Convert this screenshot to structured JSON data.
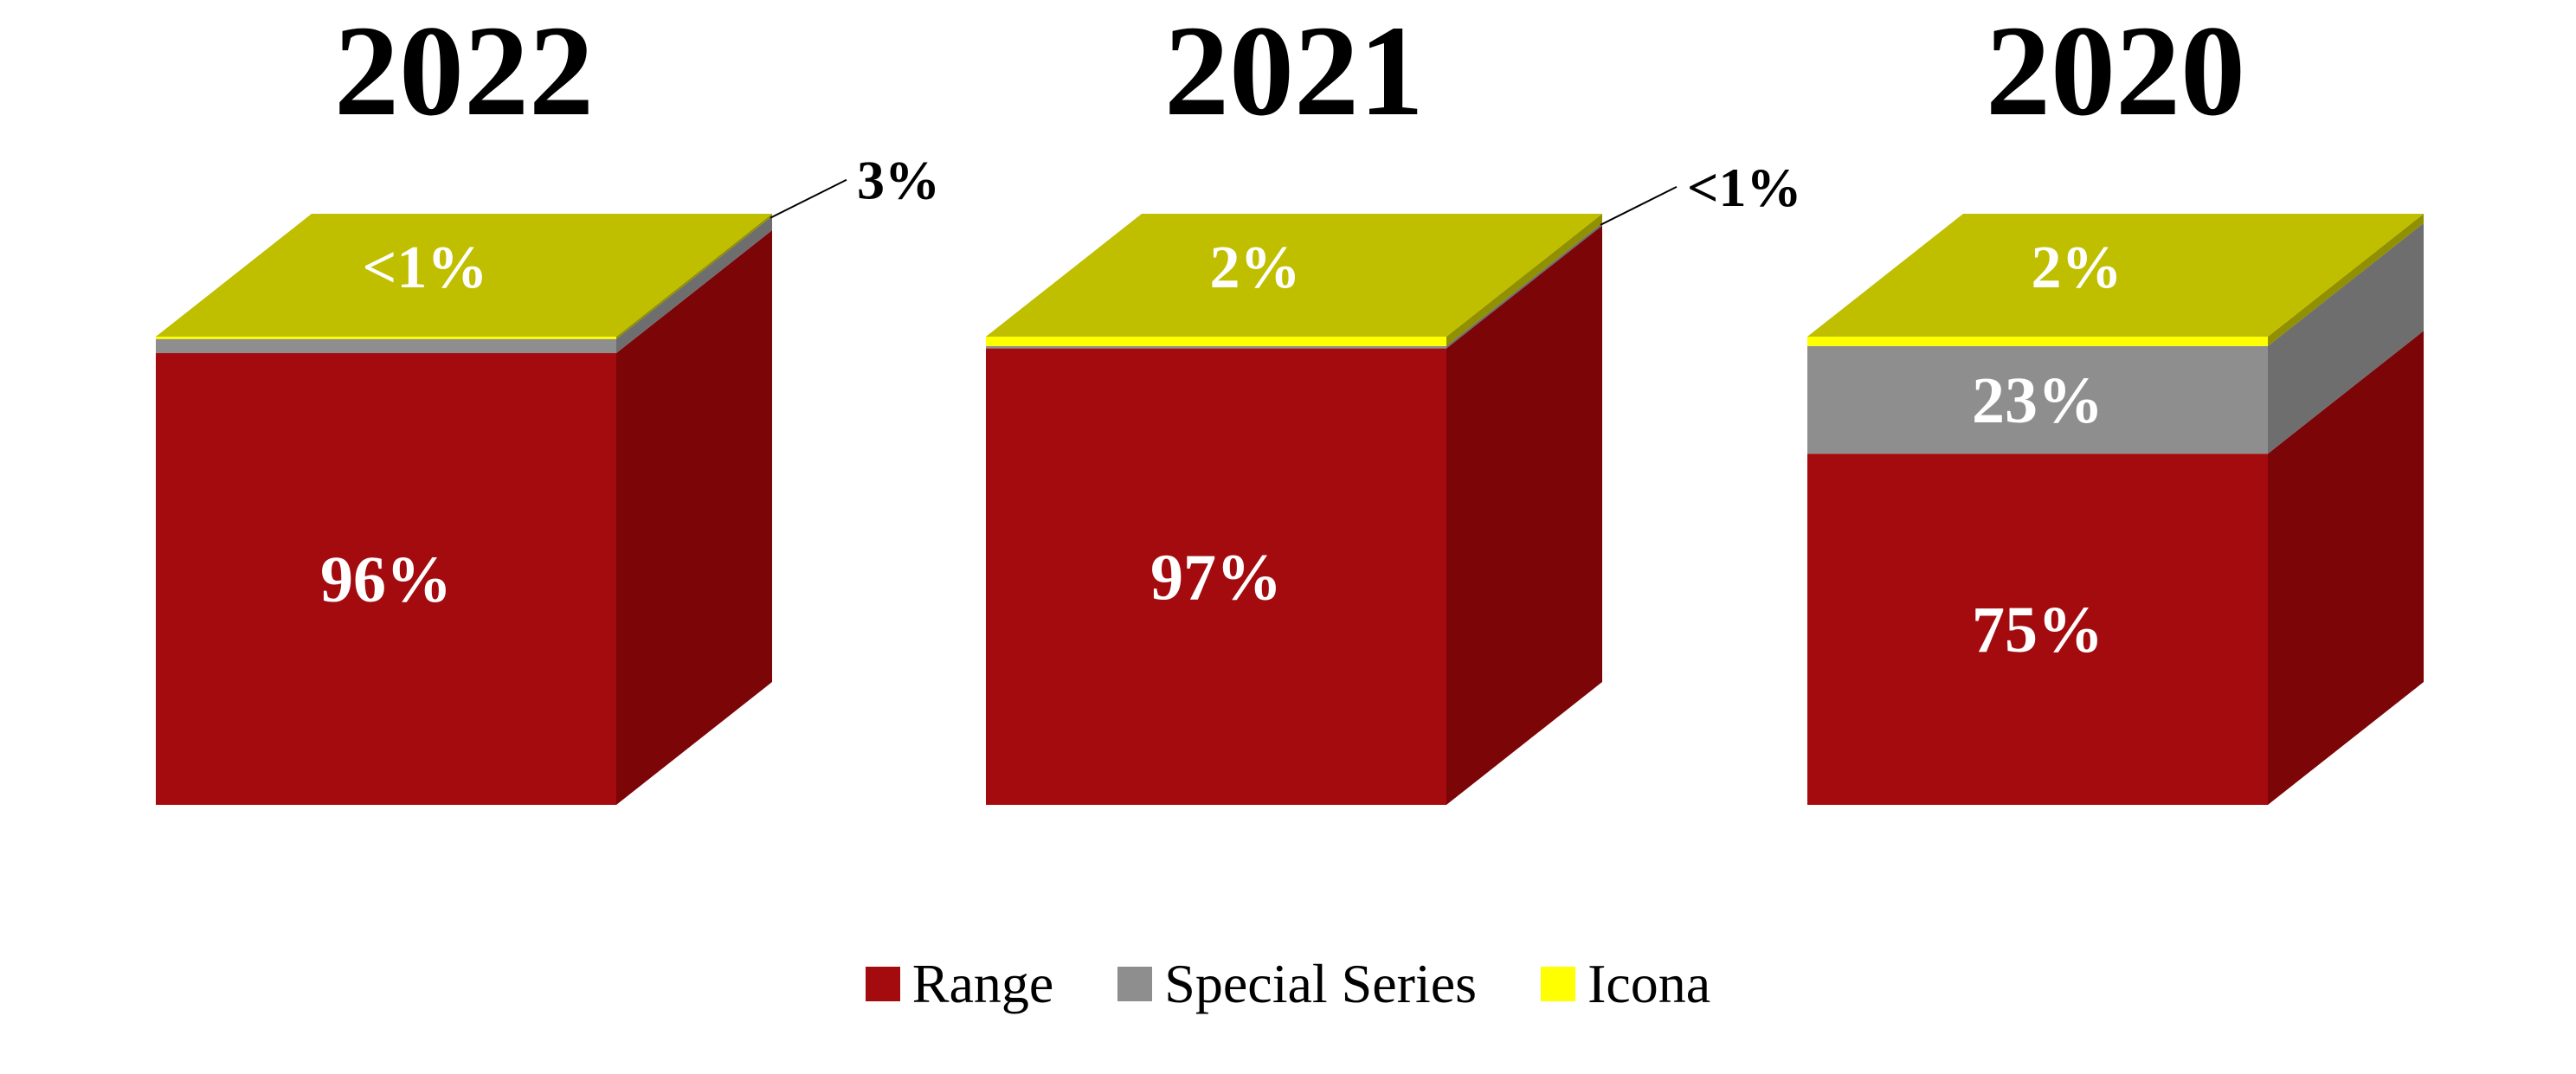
{
  "chart_data": {
    "type": "bar",
    "variant": "3d-stacked-cube",
    "unit": "%",
    "order": "segments listed bottom-to-top",
    "background": "#FFFFFF",
    "years": [
      {
        "title": "2022",
        "segments": [
          {
            "series": "Range",
            "label": "96%",
            "value": 96,
            "label_position": "front"
          },
          {
            "series": "Special Series",
            "label": "3%",
            "value": 3,
            "label_position": "callout"
          },
          {
            "series": "Icona",
            "label": "<1%",
            "value": 0.5,
            "label_position": "top"
          }
        ]
      },
      {
        "title": "2021",
        "segments": [
          {
            "series": "Range",
            "label": "97%",
            "value": 97,
            "label_position": "front"
          },
          {
            "series": "Special Series",
            "label": "<1%",
            "value": 0.5,
            "label_position": "callout"
          },
          {
            "series": "Icona",
            "label": "2%",
            "value": 2,
            "label_position": "top"
          }
        ]
      },
      {
        "title": "2020",
        "segments": [
          {
            "series": "Range",
            "label": "75%",
            "value": 75,
            "label_position": "front"
          },
          {
            "series": "Special Series",
            "label": "23%",
            "value": 23,
            "label_position": "front"
          },
          {
            "series": "Icona",
            "label": "2%",
            "value": 2,
            "label_position": "top"
          }
        ]
      }
    ],
    "legend": [
      {
        "label": "Range",
        "color": "#A40B0E"
      },
      {
        "label": "Special Series",
        "color": "#8E8E8E"
      },
      {
        "label": "Icona",
        "color": "#FFFF00"
      }
    ],
    "colors": {
      "Range": {
        "front": "#A40B0E",
        "side": "#7C0507",
        "top": "#C23336"
      },
      "Special Series": {
        "front": "#8E8E8E",
        "side": "#6E6E6E",
        "top": "#A8A8A8"
      },
      "Icona": {
        "front": "#FFFF00",
        "side": "#909000",
        "top": "#BFBF00"
      }
    },
    "text_colors": {
      "title": "#000000",
      "segment_label": "#FFFFFF",
      "callout": "#000000",
      "legend": "#000000"
    }
  }
}
